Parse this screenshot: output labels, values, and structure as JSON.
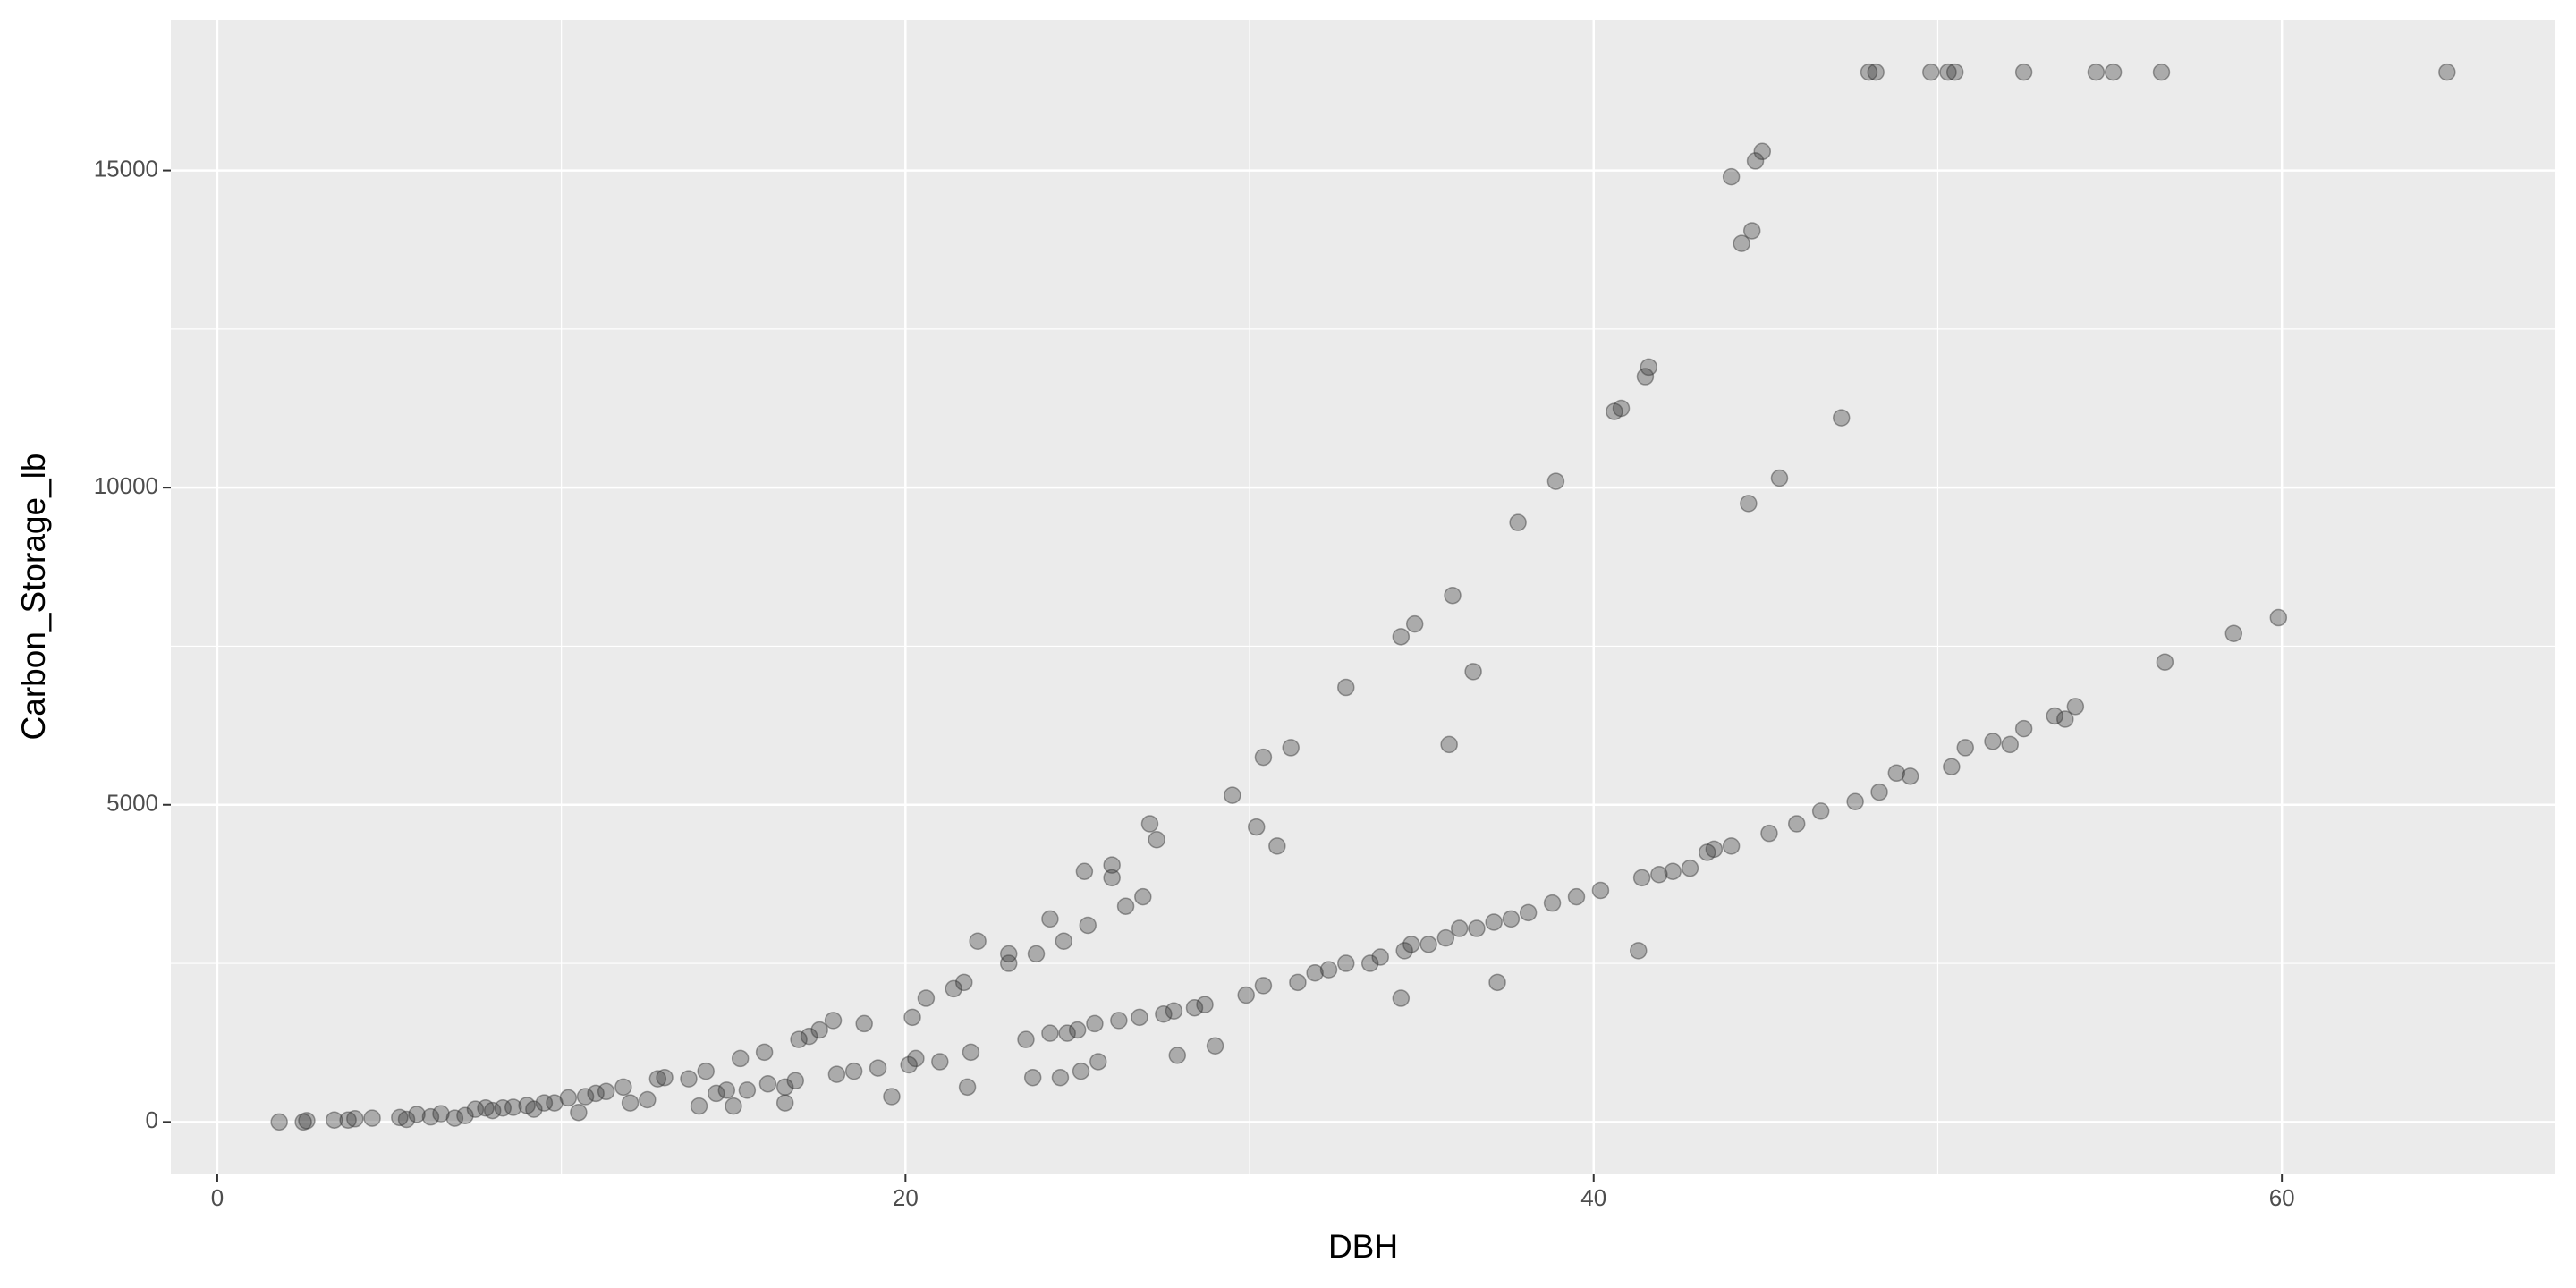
{
  "chart_data": {
    "type": "scatter",
    "x_label": "DBH",
    "y_label": "Carbon_Storage_lb",
    "color": "#333333",
    "grid": true,
    "xlim": [
      -1.35,
      67.95
    ],
    "ylim": [
      -827,
      17377
    ],
    "xticks": [
      0,
      20,
      40,
      60
    ],
    "yticks": [
      0,
      5000,
      10000,
      15000
    ],
    "x": [
      1.8,
      2.5,
      2.6,
      3.4,
      3.8,
      4.0,
      4.5,
      5.3,
      5.5,
      5.8,
      6.2,
      6.5,
      6.9,
      7.2,
      7.5,
      7.8,
      8.0,
      8.3,
      8.6,
      9.0,
      9.2,
      9.5,
      9.8,
      10.2,
      10.5,
      10.7,
      11.0,
      11.3,
      11.8,
      12.0,
      12.5,
      12.8,
      13.0,
      13.7,
      14.2,
      14.0,
      14.5,
      14.8,
      15.2,
      15.0,
      15.4,
      16.0,
      15.9,
      16.5,
      16.5,
      16.8,
      16.9,
      17.2,
      17.5,
      17.9,
      18.0,
      18.5,
      18.8,
      19.2,
      19.6,
      20.1,
      20.3,
      20.2,
      20.6,
      21.0,
      21.4,
      21.8,
      21.7,
      21.9,
      22.1,
      23.0,
      23.0,
      23.5,
      23.7,
      23.8,
      24.2,
      24.2,
      24.7,
      24.6,
      24.5,
      25.0,
      25.1,
      25.5,
      25.3,
      25.2,
      26.2,
      26.0,
      26.0,
      26.4,
      26.8,
      26.9,
      25.6,
      27.1,
      27.3,
      27.5,
      27.8,
      27.9,
      28.4,
      28.7,
      29.0,
      29.5,
      29.9,
      30.2,
      30.4,
      30.4,
      30.8,
      31.4,
      31.2,
      31.9,
      32.3,
      32.8,
      33.5,
      32.8,
      33.8,
      34.5,
      34.7,
      35.2,
      34.4,
      34.4,
      34.8,
      35.7,
      36.1,
      35.8,
      35.9,
      36.6,
      36.5,
      37.1,
      37.2,
      37.6,
      37.8,
      38.1,
      38.8,
      38.9,
      39.5,
      40.2,
      40.6,
      40.8,
      41.4,
      41.3,
      41.5,
      41.6,
      41.9,
      42.3,
      42.8,
      43.3,
      43.5,
      44.0,
      44.0,
      44.3,
      44.6,
      44.5,
      45.1,
      45.4,
      45.9,
      44.7,
      44.9,
      46.6,
      47.2,
      47.6,
      48.0,
      48.2,
      48.3,
      48.8,
      49.2,
      49.8,
      50.3,
      50.5,
      50.4,
      50.8,
      51.6,
      52.1,
      52.5,
      52.5,
      53.4,
      53.7,
      54.0,
      54.6,
      55.1,
      56.5,
      56.6,
      58.6,
      59.9,
      64.8
    ],
    "values": [
      0,
      0,
      20,
      30,
      30,
      50,
      60,
      70,
      40,
      120,
      80,
      130,
      60,
      100,
      200,
      220,
      180,
      220,
      230,
      260,
      200,
      300,
      300,
      380,
      150,
      400,
      450,
      480,
      550,
      300,
      350,
      680,
      700,
      680,
      800,
      250,
      450,
      500,
      1000,
      250,
      500,
      600,
      1100,
      550,
      300,
      650,
      1300,
      1350,
      1450,
      1600,
      750,
      800,
      1550,
      850,
      400,
      900,
      1000,
      1650,
      1950,
      950,
      2100,
      550,
      2200,
      1100,
      2850,
      2500,
      2650,
      1300,
      700,
      2650,
      1400,
      3200,
      1400,
      2850,
      700,
      1450,
      800,
      1550,
      3100,
      3950,
      1600,
      3850,
      4050,
      3400,
      1650,
      3550,
      950,
      4700,
      4450,
      1700,
      1750,
      1050,
      1800,
      1850,
      1200,
      5150,
      2000,
      4650,
      2150,
      5750,
      4350,
      2200,
      5900,
      2350,
      2400,
      2500,
      2500,
      6850,
      2600,
      2700,
      2800,
      2800,
      1950,
      7650,
      7850,
      2900,
      3050,
      5950,
      8300,
      3050,
      7100,
      3150,
      2200,
      3200,
      9450,
      3300,
      3450,
      10100,
      3550,
      3650,
      11200,
      11250,
      3850,
      2700,
      11750,
      11900,
      3900,
      3950,
      4000,
      4250,
      4300,
      4350,
      14900,
      13850,
      14050,
      9750,
      4550,
      10150,
      4700,
      15150,
      15300,
      4900,
      11100,
      5050,
      16550,
      16550,
      5200,
      5500,
      5450,
      16550,
      16550,
      16550,
      5600,
      5900,
      6000,
      5950,
      6200,
      16550,
      6400,
      6350,
      6550,
      16550,
      16550,
      16550,
      7250,
      7700,
      7950,
      16550
    ]
  }
}
